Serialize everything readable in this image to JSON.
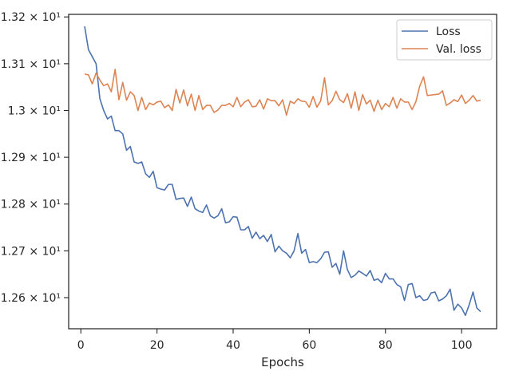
{
  "chart_data": {
    "type": "line",
    "title": "",
    "xlabel": "Epochs",
    "ylabel": "",
    "xlim": [
      -3.2,
      109.2
    ],
    "ylim": [
      12.5335,
      13.2055
    ],
    "grid": false,
    "legend_position": "top-right",
    "x_ticks": [
      0,
      20,
      40,
      60,
      80,
      100
    ],
    "x_tick_labels": [
      "0",
      "20",
      "40",
      "60",
      "80",
      "100"
    ],
    "y_ticks": [
      12.6,
      12.7,
      12.8,
      12.9,
      13.0,
      13.1,
      13.2
    ],
    "y_tick_labels": [
      "1.26 × 10¹",
      "1.27 × 10¹",
      "1.28 × 10¹",
      "1.29 × 10¹",
      "1.3 × 10¹",
      "1.31 × 10¹",
      "1.32 × 10¹"
    ],
    "x": [
      1,
      2,
      3,
      4,
      5,
      6,
      7,
      8,
      9,
      10,
      11,
      12,
      13,
      14,
      15,
      16,
      17,
      18,
      19,
      20,
      21,
      22,
      23,
      24,
      25,
      26,
      27,
      28,
      29,
      30,
      31,
      32,
      33,
      34,
      35,
      36,
      37,
      38,
      39,
      40,
      41,
      42,
      43,
      44,
      45,
      46,
      47,
      48,
      49,
      50,
      51,
      52,
      53,
      54,
      55,
      56,
      57,
      58,
      59,
      60,
      61,
      62,
      63,
      64,
      65,
      66,
      67,
      68,
      69,
      70,
      71,
      72,
      73,
      74,
      75,
      76,
      77,
      78,
      79,
      80,
      81,
      82,
      83,
      84,
      85,
      86,
      87,
      88,
      89,
      90,
      91,
      92,
      93,
      94,
      95,
      96,
      97,
      98,
      99,
      100,
      101,
      102,
      103,
      104,
      105
    ],
    "series": [
      {
        "name": "Loss",
        "color": "#4c72b0",
        "values": [
          13.18,
          13.13,
          13.115,
          13.1,
          13.025,
          13.0,
          12.982,
          12.988,
          12.957,
          12.957,
          12.95,
          12.915,
          12.923,
          12.89,
          12.887,
          12.89,
          12.865,
          12.857,
          12.87,
          12.835,
          12.832,
          12.83,
          12.842,
          12.842,
          12.81,
          12.812,
          12.813,
          12.795,
          12.815,
          12.79,
          12.785,
          12.782,
          12.798,
          12.775,
          12.77,
          12.775,
          12.79,
          12.76,
          12.762,
          12.773,
          12.772,
          12.745,
          12.745,
          12.752,
          12.727,
          12.74,
          12.726,
          12.733,
          12.72,
          12.735,
          12.698,
          12.71,
          12.7,
          12.695,
          12.685,
          12.7,
          12.737,
          12.695,
          12.703,
          12.675,
          12.677,
          12.675,
          12.683,
          12.697,
          12.698,
          12.665,
          12.673,
          12.65,
          12.7,
          12.66,
          12.643,
          12.648,
          12.657,
          12.652,
          12.646,
          12.658,
          12.637,
          12.64,
          12.632,
          12.652,
          12.64,
          12.64,
          12.628,
          12.623,
          12.594,
          12.628,
          12.63,
          12.6,
          12.604,
          12.594,
          12.596,
          12.61,
          12.612,
          12.593,
          12.597,
          12.604,
          12.618,
          12.573,
          12.586,
          12.578,
          12.562,
          12.585,
          12.612,
          12.578,
          12.57
        ]
      },
      {
        "name": "Val. loss",
        "color": "#dd8452",
        "values": [
          13.078,
          13.076,
          13.057,
          13.08,
          13.065,
          13.053,
          13.057,
          13.04,
          13.088,
          13.023,
          13.06,
          13.022,
          13.04,
          13.032,
          13.0,
          13.028,
          13.002,
          13.016,
          13.012,
          13.018,
          13.02,
          13.006,
          13.012,
          13.0,
          13.045,
          13.016,
          13.044,
          13.01,
          13.035,
          13.0,
          13.032,
          13.002,
          13.011,
          13.011,
          12.996,
          13.001,
          13.011,
          13.011,
          13.015,
          13.008,
          13.028,
          13.008,
          13.018,
          13.023,
          13.008,
          13.009,
          13.023,
          13.003,
          13.025,
          13.021,
          13.021,
          13.01,
          13.023,
          12.99,
          13.02,
          13.015,
          13.025,
          13.02,
          13.019,
          13.007,
          13.03,
          13.007,
          13.021,
          13.07,
          13.012,
          13.021,
          13.041,
          13.023,
          13.017,
          13.036,
          13.005,
          13.04,
          13.0,
          13.034,
          13.014,
          13.022,
          12.998,
          13.022,
          13.002,
          13.015,
          13.008,
          13.028,
          13.005,
          13.025,
          13.018,
          13.018,
          13.002,
          13.019,
          13.052,
          13.072,
          13.032,
          13.033,
          13.034,
          13.035,
          13.042,
          13.011,
          13.016,
          13.023,
          13.019,
          13.033,
          13.015,
          13.022,
          13.032,
          13.02,
          13.022
        ]
      }
    ]
  }
}
